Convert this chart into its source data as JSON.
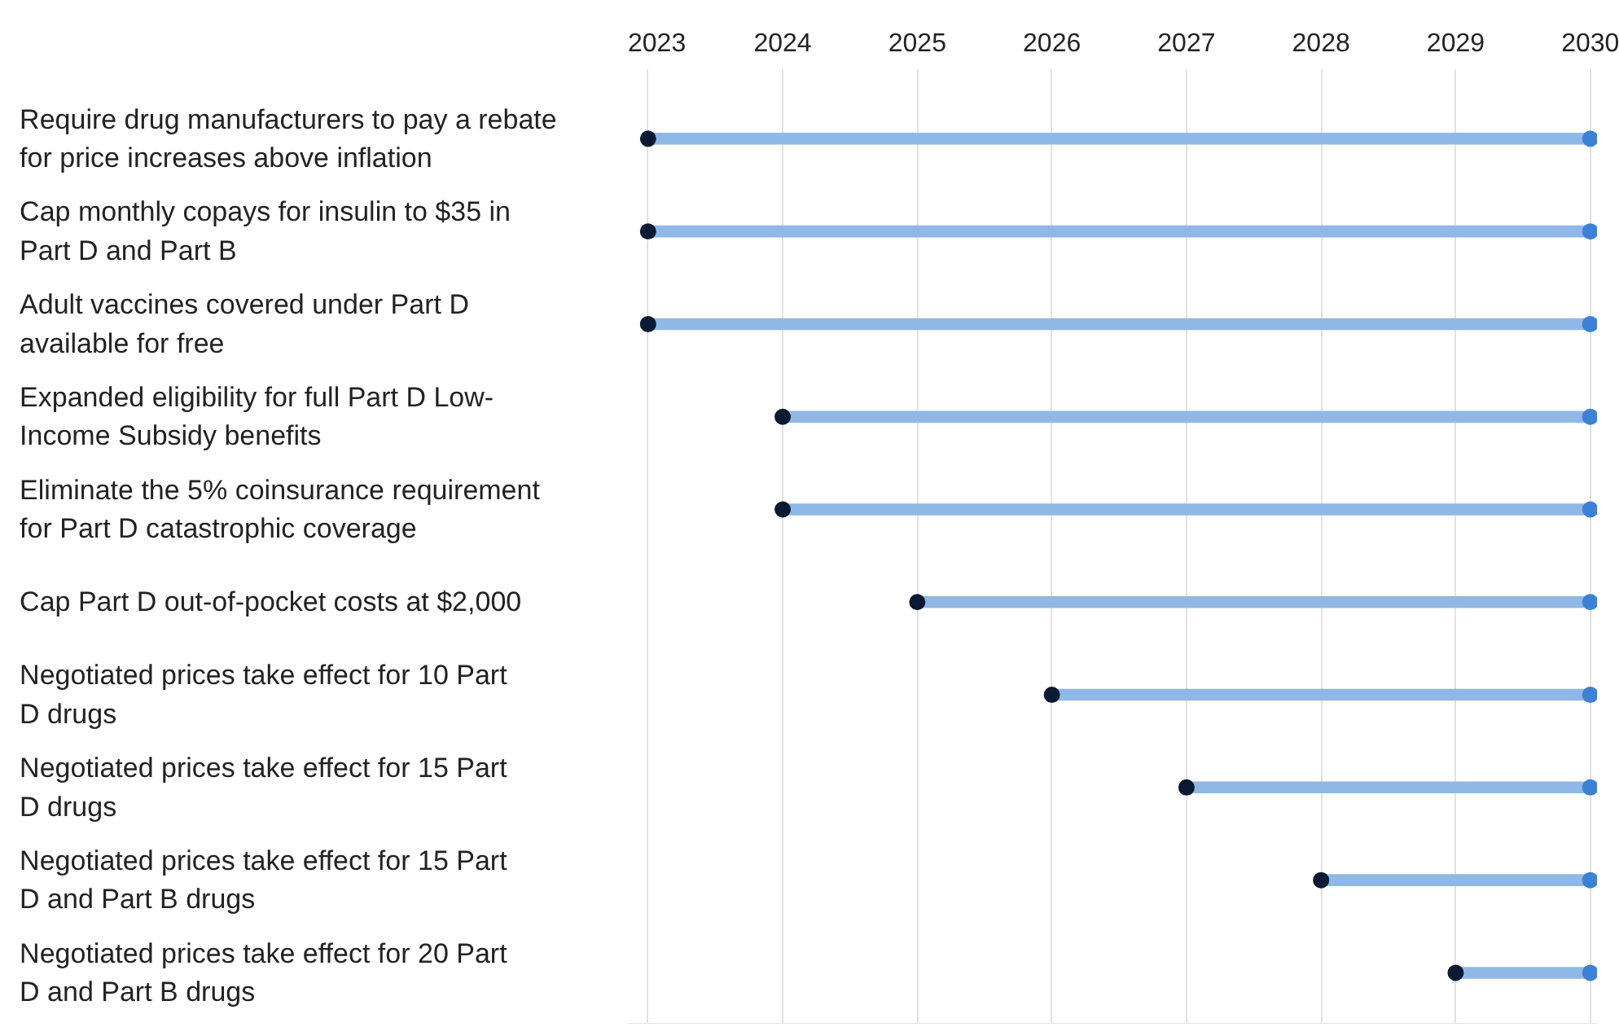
{
  "chart_data": {
    "type": "bar",
    "orientation": "horizontal",
    "categories": [
      "Require drug manufacturers to pay a rebate for price increases above inflation",
      "Cap monthly copays for insulin to $35 in Part D and Part B",
      "Adult vaccines covered under Part D available for free",
      "Expanded eligibility for full Part D Low-Income Subsidy benefits",
      "Eliminate the 5% coinsurance requirement for Part D catastrophic coverage",
      "Cap Part D out-of-pocket costs at $2,000",
      "Negotiated prices take effect for 10 Part D drugs",
      "Negotiated prices take effect for 15 Part D drugs",
      "Negotiated prices take effect for 15 Part D and Part B drugs",
      "Negotiated prices take effect for 20 Part D and Part B drugs"
    ],
    "series": [
      {
        "color": "#8fb8e6",
        "base": [
          2023,
          2023,
          2023,
          2024,
          2024,
          2025,
          2026,
          2027,
          2028,
          2029
        ],
        "values": [
          7,
          7,
          7,
          6,
          6,
          5,
          4,
          3,
          2,
          1
        ]
      },
      {
        "type": "scatter",
        "color": "#0b1a33",
        "values": [
          2023,
          2023,
          2023,
          2024,
          2024,
          2025,
          2026,
          2027,
          2028,
          2029
        ]
      },
      {
        "type": "scatter",
        "color": "#3b82d6",
        "values": [
          2030,
          2030,
          2030,
          2030,
          2030,
          2030,
          2030,
          2030,
          2030,
          2030
        ]
      }
    ],
    "marker": "circle",
    "xlim": [
      2022.85,
      2030.05
    ],
    "xticks": [
      2023,
      2024,
      2025,
      2026,
      2027,
      2028,
      2029,
      2030
    ],
    "grid": "x"
  }
}
